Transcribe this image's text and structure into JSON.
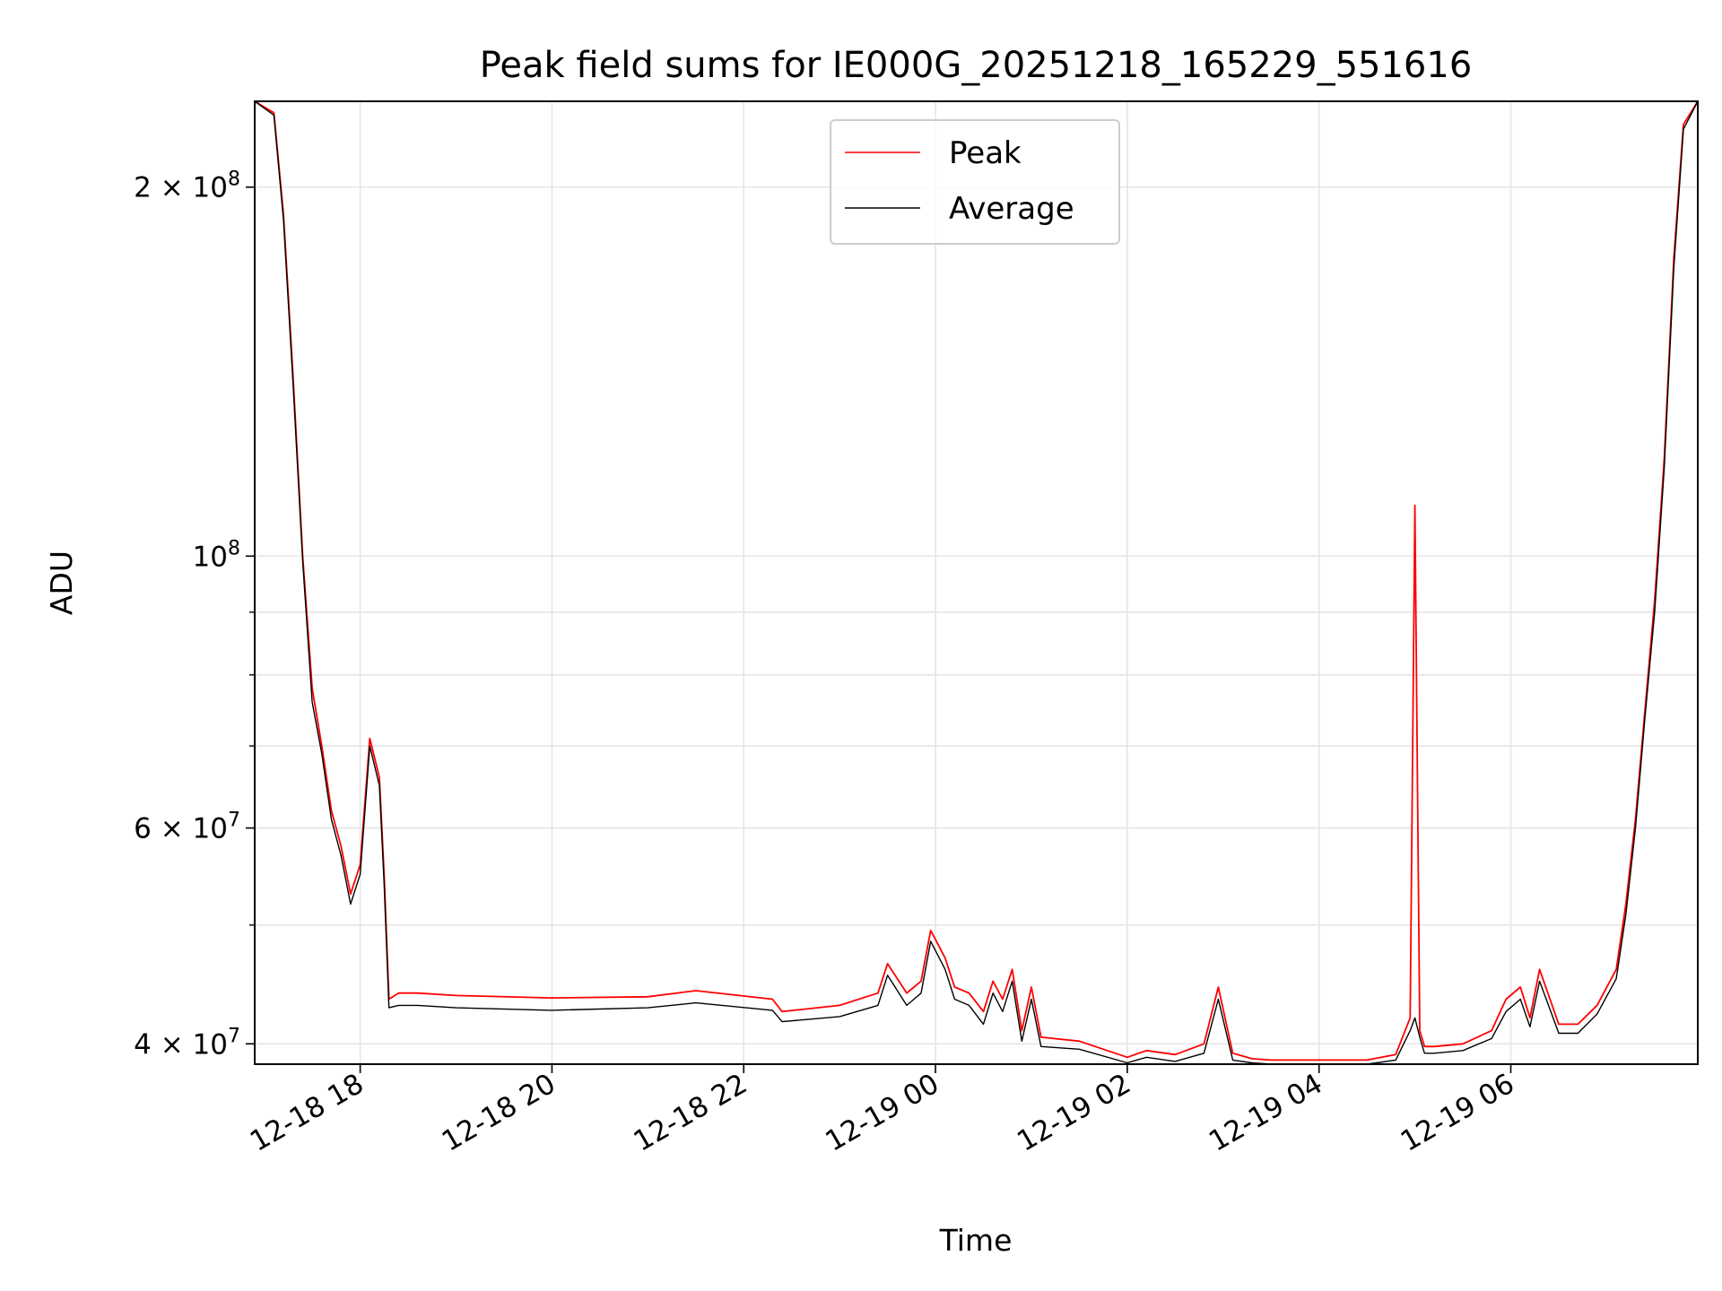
{
  "chart_data": {
    "type": "line",
    "title": "Peak field sums for IE000G_20251218_165229_551616",
    "xlabel": "Time",
    "ylabel": "ADU",
    "yscale": "log",
    "ylim": [
      38500000,
      235000000
    ],
    "xlim_hours_from_2025_12_18_0000": [
      16.9,
      31.95
    ],
    "grid": true,
    "legend_position": "top-center",
    "x_ticks": [
      {
        "value": 18,
        "label": "12-18 18"
      },
      {
        "value": 20,
        "label": "12-18 20"
      },
      {
        "value": 22,
        "label": "12-18 22"
      },
      {
        "value": 24,
        "label": "12-19 00"
      },
      {
        "value": 26,
        "label": "12-19 02"
      },
      {
        "value": 28,
        "label": "12-19 04"
      },
      {
        "value": 30,
        "label": "12-19 06"
      }
    ],
    "y_major_ticks": [
      {
        "value": 40000000,
        "mantissa": "4",
        "exponent": "7"
      },
      {
        "value": 60000000,
        "mantissa": "6",
        "exponent": "7"
      },
      {
        "value": 100000000,
        "mantissa": "",
        "exponent": "8"
      },
      {
        "value": 200000000,
        "mantissa": "2",
        "exponent": "8"
      }
    ],
    "y_minor_ticks": [
      50000000,
      70000000,
      80000000,
      90000000
    ],
    "series": [
      {
        "name": "Peak",
        "color": "#ff0000",
        "x": [
          16.9,
          17.1,
          17.2,
          17.3,
          17.4,
          17.5,
          17.6,
          17.7,
          17.8,
          17.9,
          18.0,
          18.1,
          18.2,
          18.25,
          18.3,
          18.4,
          18.6,
          19.0,
          20.0,
          21.0,
          21.5,
          22.3,
          22.4,
          23.0,
          23.4,
          23.5,
          23.7,
          23.85,
          23.95,
          24.1,
          24.2,
          24.35,
          24.5,
          24.6,
          24.7,
          24.8,
          24.9,
          25.0,
          25.1,
          25.5,
          26.0,
          26.2,
          26.5,
          26.8,
          26.95,
          27.1,
          27.3,
          27.5,
          28.0,
          28.5,
          28.8,
          28.95,
          29.0,
          29.05,
          29.1,
          29.2,
          29.5,
          29.8,
          29.95,
          30.1,
          30.2,
          30.3,
          30.5,
          30.7,
          30.9,
          31.1,
          31.2,
          31.3,
          31.4,
          31.5,
          31.6,
          31.7,
          31.8,
          31.95
        ],
        "y": [
          235000000,
          230000000,
          190000000,
          140000000,
          100000000,
          78000000,
          70000000,
          62000000,
          58000000,
          53000000,
          56000000,
          71000000,
          66000000,
          55000000,
          43500000,
          44000000,
          44000000,
          43800000,
          43600000,
          43700000,
          44200000,
          43500000,
          42500000,
          43000000,
          44000000,
          46500000,
          44000000,
          45000000,
          49500000,
          47000000,
          44500000,
          44000000,
          42500000,
          45000000,
          43500000,
          46000000,
          41000000,
          44500000,
          40500000,
          40200000,
          39000000,
          39500000,
          39200000,
          40000000,
          44500000,
          39300000,
          38900000,
          38800000,
          38800000,
          38800000,
          39200000,
          42000000,
          110000000,
          41000000,
          39800000,
          39800000,
          40000000,
          41000000,
          43500000,
          44500000,
          42000000,
          46000000,
          41500000,
          41500000,
          43000000,
          46000000,
          52000000,
          61000000,
          75000000,
          92000000,
          120000000,
          175000000,
          225000000,
          235000000
        ]
      },
      {
        "name": "Average",
        "color": "#000000",
        "x": [
          16.9,
          17.1,
          17.2,
          17.3,
          17.4,
          17.5,
          17.6,
          17.7,
          17.8,
          17.9,
          18.0,
          18.1,
          18.2,
          18.25,
          18.3,
          18.4,
          18.6,
          19.0,
          20.0,
          21.0,
          21.5,
          22.3,
          22.4,
          23.0,
          23.4,
          23.5,
          23.7,
          23.85,
          23.95,
          24.1,
          24.2,
          24.35,
          24.5,
          24.6,
          24.7,
          24.8,
          24.9,
          25.0,
          25.1,
          25.5,
          26.0,
          26.2,
          26.5,
          26.8,
          26.95,
          27.1,
          27.3,
          27.5,
          28.0,
          28.5,
          28.8,
          28.95,
          29.0,
          29.05,
          29.1,
          29.2,
          29.5,
          29.8,
          29.95,
          30.1,
          30.2,
          30.3,
          30.5,
          30.7,
          30.9,
          31.1,
          31.2,
          31.3,
          31.4,
          31.5,
          31.6,
          31.7,
          31.8,
          31.95
        ],
        "y": [
          235000000,
          229000000,
          188000000,
          138000000,
          99000000,
          76000000,
          69000000,
          61000000,
          57000000,
          52000000,
          55000000,
          70000000,
          65000000,
          54000000,
          42800000,
          43000000,
          43000000,
          42800000,
          42600000,
          42800000,
          43200000,
          42600000,
          41700000,
          42100000,
          43000000,
          45500000,
          43000000,
          44000000,
          48500000,
          46000000,
          43500000,
          43000000,
          41500000,
          44000000,
          42500000,
          45000000,
          40200000,
          43500000,
          39800000,
          39600000,
          38600000,
          39000000,
          38700000,
          39300000,
          43500000,
          38800000,
          38600000,
          38500000,
          38500000,
          38500000,
          38800000,
          41000000,
          42000000,
          40500000,
          39300000,
          39300000,
          39500000,
          40400000,
          42500000,
          43500000,
          41300000,
          45000000,
          40800000,
          40800000,
          42300000,
          45200000,
          51000000,
          60000000,
          74000000,
          90000000,
          118000000,
          172000000,
          223000000,
          235000000
        ]
      }
    ]
  }
}
